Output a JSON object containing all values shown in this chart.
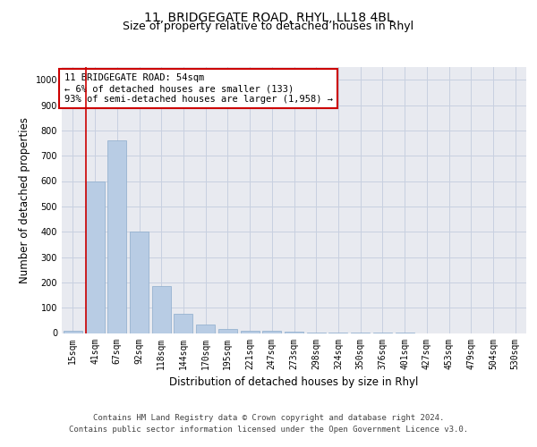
{
  "title_line1": "11, BRIDGEGATE ROAD, RHYL, LL18 4BL",
  "title_line2": "Size of property relative to detached houses in Rhyl",
  "xlabel": "Distribution of detached houses by size in Rhyl",
  "ylabel": "Number of detached properties",
  "categories": [
    "15sqm",
    "41sqm",
    "67sqm",
    "92sqm",
    "118sqm",
    "144sqm",
    "170sqm",
    "195sqm",
    "221sqm",
    "247sqm",
    "273sqm",
    "298sqm",
    "324sqm",
    "350sqm",
    "376sqm",
    "401sqm",
    "427sqm",
    "453sqm",
    "479sqm",
    "504sqm",
    "530sqm"
  ],
  "values": [
    10,
    600,
    760,
    400,
    185,
    75,
    32,
    17,
    10,
    10,
    5,
    3,
    3,
    2,
    1,
    1,
    0,
    0,
    0,
    0,
    0
  ],
  "bar_color": "#b8cce4",
  "bar_edge_color": "#8caccc",
  "vline_color": "#cc0000",
  "vline_x_index": 1,
  "annotation_text": "11 BRIDGEGATE ROAD: 54sqm\n← 6% of detached houses are smaller (133)\n93% of semi-detached houses are larger (1,958) →",
  "annotation_box_color": "#ffffff",
  "annotation_box_edge": "#cc0000",
  "ylim": [
    0,
    1050
  ],
  "yticks": [
    0,
    100,
    200,
    300,
    400,
    500,
    600,
    700,
    800,
    900,
    1000
  ],
  "grid_color": "#c8d0e0",
  "background_color": "#e8eaf0",
  "footer_line1": "Contains HM Land Registry data © Crown copyright and database right 2024.",
  "footer_line2": "Contains public sector information licensed under the Open Government Licence v3.0.",
  "title_fontsize": 10,
  "subtitle_fontsize": 9,
  "tick_fontsize": 7,
  "label_fontsize": 8.5,
  "annotation_fontsize": 7.5
}
